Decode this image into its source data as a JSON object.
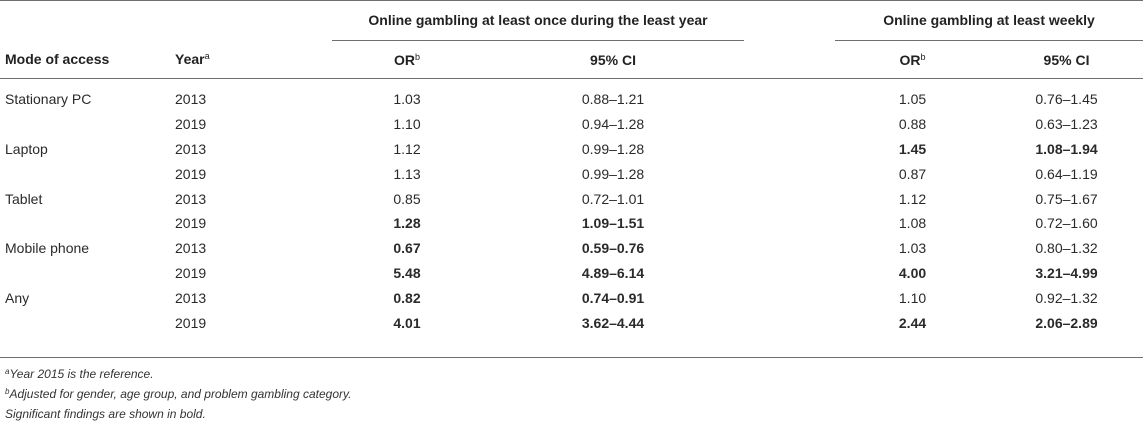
{
  "header": {
    "group1": "Online gambling at least once during the least year",
    "group2": "Online gambling at least weekly",
    "mode_label": "Mode of access",
    "year_label": "Year",
    "year_sup": "a",
    "or_label": "OR",
    "or_sup": "b",
    "ci_label": "95% CI"
  },
  "rows": [
    {
      "mode": "Stationary PC",
      "year": "2013",
      "or1": "1.03",
      "ci1": "0.88–1.21",
      "or2": "1.05",
      "ci2": "0.76–1.45"
    },
    {
      "mode": "",
      "year": "2019",
      "or1": "1.10",
      "ci1": "0.94–1.28",
      "or2": "0.88",
      "ci2": "0.63–1.23"
    },
    {
      "mode": "Laptop",
      "year": "2013",
      "or1": "1.12",
      "ci1": "0.99–1.28",
      "or2": "1.45",
      "ci2": "1.08–1.94"
    },
    {
      "mode": "",
      "year": "2019",
      "or1": "1.13",
      "ci1": "0.99–1.28",
      "or2": "0.87",
      "ci2": "0.64–1.19"
    },
    {
      "mode": "Tablet",
      "year": "2013",
      "or1": "0.85",
      "ci1": "0.72–1.01",
      "or2": "1.12",
      "ci2": "0.75–1.67"
    },
    {
      "mode": "",
      "year": "2019",
      "or1": "1.28",
      "ci1": "1.09–1.51",
      "or2": "1.08",
      "ci2": "0.72–1.60"
    },
    {
      "mode": "Mobile phone",
      "year": "2013",
      "or1": "0.67",
      "ci1": "0.59–0.76",
      "or2": "1.03",
      "ci2": "0.80–1.32"
    },
    {
      "mode": "",
      "year": "2019",
      "or1": "5.48",
      "ci1": "4.89–6.14",
      "or2": "4.00",
      "ci2": "3.21–4.99"
    },
    {
      "mode": "Any",
      "year": "2013",
      "or1": "0.82",
      "ci1": "0.74–0.91",
      "or2": "1.10",
      "ci2": "0.92–1.32"
    },
    {
      "mode": "",
      "year": "2019",
      "or1": "4.01",
      "ci1": "3.62–4.44",
      "or2": "2.44",
      "ci2": "2.06–2.89"
    }
  ],
  "notes": {
    "note_a_sup": "a",
    "note_a": "Year 2015 is the reference.",
    "note_b_sup": "b",
    "note_b": "Adjusted for gender, age group, and problem gambling category.",
    "note_c": "Significant findings are shown in bold."
  }
}
